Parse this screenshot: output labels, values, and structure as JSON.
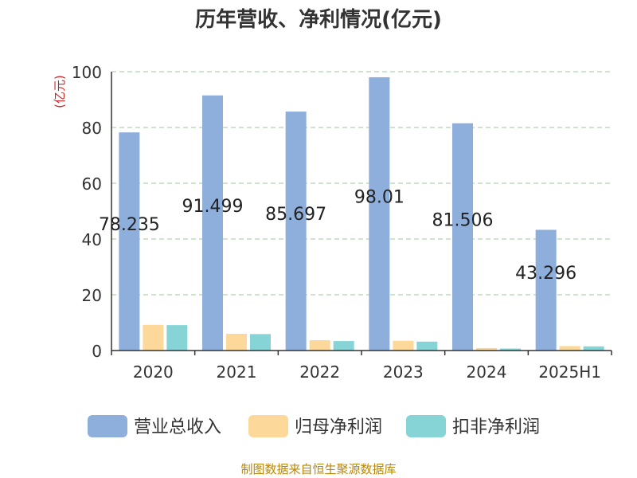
{
  "title": "历年营收、净利情况(亿元)",
  "source": "制图数据来自恒生聚源数据库",
  "colors": {
    "营业总收入": "#8eaedc",
    "归母净利润": "#fcd89a",
    "扣非净利润": "#86d4d6",
    "grid": "#9fc89f",
    "axis": "#333333",
    "unit": "#cc2222",
    "source": "#b8860b"
  },
  "chart_data": {
    "type": "bar",
    "title": "历年营收、净利情况(亿元)",
    "ylabel": "(亿元)",
    "ylim": [
      0,
      100
    ],
    "yticks": [
      0,
      20,
      40,
      60,
      80,
      100
    ],
    "grid": true,
    "legend_position": "bottom",
    "categories": [
      "2020",
      "2021",
      "2022",
      "2023",
      "2024",
      "2025H1"
    ],
    "series": [
      {
        "name": "营业总收入",
        "values": [
          78.235,
          91.499,
          85.697,
          98.01,
          81.506,
          43.296
        ],
        "labels": [
          "78.235",
          "91.499",
          "85.697",
          "98.01",
          "81.506",
          "43.296"
        ]
      },
      {
        "name": "归母净利润",
        "values": [
          9.2,
          6.0,
          3.7,
          3.5,
          0.9,
          1.6
        ]
      },
      {
        "name": "扣非净利润",
        "values": [
          9.1,
          5.9,
          3.4,
          3.2,
          0.7,
          1.5
        ]
      }
    ]
  }
}
